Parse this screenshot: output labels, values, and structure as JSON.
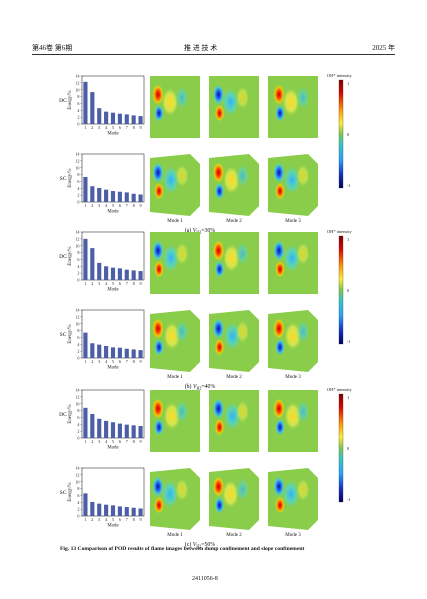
{
  "header": {
    "left": "第46卷 第6期",
    "center": "推 进 技 术",
    "right": "2025 年"
  },
  "colorbar": {
    "title": "OH* intensity",
    "max_label": "1",
    "mid_label": "0",
    "min_label": "-1"
  },
  "bar_axes": {
    "ylabel": "Energy/%",
    "xlabel": "Mode",
    "yticks": [
      "0",
      "2",
      "4",
      "6",
      "8",
      "10",
      "12",
      "14"
    ],
    "xticks": [
      "1",
      "2",
      "3",
      "4",
      "5",
      "6",
      "7",
      "8",
      "9"
    ]
  },
  "mode_labels": [
    "Mode 1",
    "Mode 2",
    "Mode 3"
  ],
  "row_labels": [
    "DC",
    "SC"
  ],
  "panels": [
    {
      "caption_prefix": "(a)",
      "caption_var": "V",
      "caption_sub": "H2",
      "caption_value": "=30%",
      "dc_image_vals": [
        0.6,
        -0.3,
        0.45
      ]
    },
    {
      "caption_prefix": "(b)",
      "caption_var": "V",
      "caption_sub": "H2",
      "caption_value": "=40%",
      "dc_image_vals": [
        0.5,
        -0.4,
        0.35
      ]
    },
    {
      "caption_prefix": "(c)",
      "caption_var": "V",
      "caption_sub": "H2",
      "caption_value": "=50%",
      "dc_image_vals": [
        0.55,
        -0.45,
        0.4
      ]
    }
  ],
  "chart_data": [
    {
      "type": "bar",
      "panel": "(a)",
      "row": "DC",
      "categories": [
        "1",
        "2",
        "3",
        "4",
        "5",
        "6",
        "7",
        "8",
        "9"
      ],
      "values": [
        12.3,
        9.3,
        4.6,
        3.6,
        3.3,
        3.0,
        2.8,
        2.5,
        2.3
      ],
      "xlabel": "Mode",
      "ylabel": "Energy/%",
      "ylim": [
        0,
        14
      ]
    },
    {
      "type": "bar",
      "panel": "(a)",
      "row": "SC",
      "categories": [
        "1",
        "2",
        "3",
        "4",
        "5",
        "6",
        "7",
        "8",
        "9"
      ],
      "values": [
        7.3,
        4.6,
        4.1,
        3.6,
        3.2,
        3.0,
        2.8,
        2.4,
        2.2
      ],
      "xlabel": "Mode",
      "ylabel": "Energy/%",
      "ylim": [
        0,
        14
      ]
    },
    {
      "type": "bar",
      "panel": "(b)",
      "row": "DC",
      "categories": [
        "1",
        "2",
        "3",
        "4",
        "5",
        "6",
        "7",
        "8",
        "9"
      ],
      "values": [
        12.0,
        9.3,
        5.0,
        4.0,
        3.6,
        3.4,
        3.0,
        2.8,
        2.6
      ],
      "xlabel": "Mode",
      "ylabel": "Energy/%",
      "ylim": [
        0,
        14
      ]
    },
    {
      "type": "bar",
      "panel": "(b)",
      "row": "SC",
      "categories": [
        "1",
        "2",
        "3",
        "4",
        "5",
        "6",
        "7",
        "8",
        "9"
      ],
      "values": [
        7.4,
        4.3,
        3.9,
        3.5,
        3.1,
        3.0,
        2.7,
        2.5,
        2.3
      ],
      "xlabel": "Mode",
      "ylabel": "Energy/%",
      "ylim": [
        0,
        14
      ]
    },
    {
      "type": "bar",
      "panel": "(c)",
      "row": "DC",
      "categories": [
        "1",
        "2",
        "3",
        "4",
        "5",
        "6",
        "7",
        "8",
        "9"
      ],
      "values": [
        8.8,
        7.0,
        5.6,
        5.0,
        4.6,
        4.2,
        3.9,
        3.7,
        3.5
      ],
      "xlabel": "Mode",
      "ylabel": "Energy/%",
      "ylim": [
        0,
        14
      ]
    },
    {
      "type": "bar",
      "panel": "(c)",
      "row": "SC",
      "categories": [
        "1",
        "2",
        "3",
        "4",
        "5",
        "6",
        "7",
        "8",
        "9"
      ],
      "values": [
        6.6,
        4.1,
        3.6,
        3.3,
        3.1,
        2.8,
        2.6,
        2.4,
        2.2
      ],
      "xlabel": "Mode",
      "ylabel": "Energy/%",
      "ylim": [
        0,
        14
      ]
    }
  ],
  "figure_caption": "Fig. 13   Comparison of POD results of flame images between dump confinement and slope confinement",
  "footer": "2411056-8"
}
